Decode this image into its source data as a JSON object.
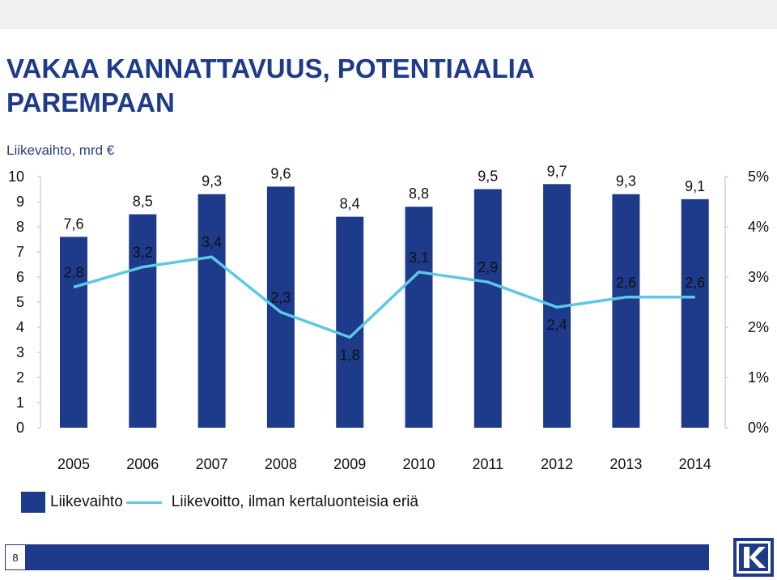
{
  "title_line1": "VAKAA KANNATTAVUUS, POTENTIAALIA",
  "title_line2": "PAREMPAAN",
  "subtitle": "Liikevaihto, mrd €",
  "page_number": "8",
  "colors": {
    "title": "#1e3a8a",
    "bar": "#1e3a8a",
    "line": "#5bc8e6"
  },
  "chart_data": {
    "type": "bar",
    "categories": [
      "2005",
      "2006",
      "2007",
      "2008",
      "2009",
      "2010",
      "2011",
      "2012",
      "2013",
      "2014"
    ],
    "series": [
      {
        "name": "Liikevaihto",
        "type": "bar",
        "axis": "left",
        "values": [
          7.6,
          8.5,
          9.3,
          9.6,
          8.4,
          8.8,
          9.5,
          9.7,
          9.3,
          9.1
        ],
        "labels": [
          "7,6",
          "8,5",
          "9,3",
          "9,6",
          "8,4",
          "8,8",
          "9,5",
          "9,7",
          "9,3",
          "9,1"
        ]
      },
      {
        "name": "Liikevoitto, ilman kertaluonteisia eriä",
        "type": "line",
        "axis": "right",
        "values": [
          2.8,
          3.2,
          3.4,
          2.3,
          1.8,
          3.1,
          2.9,
          2.4,
          2.6,
          2.6
        ],
        "labels": [
          "2,8",
          "3,2",
          "3,4",
          "2,3",
          "1,8",
          "3,1",
          "2,9",
          "2,4",
          "2,6",
          "2,6"
        ]
      }
    ],
    "y_left": {
      "min": 0,
      "max": 10,
      "ticks": [
        "0",
        "1",
        "2",
        "3",
        "4",
        "5",
        "6",
        "7",
        "8",
        "9",
        "10"
      ]
    },
    "y_right": {
      "min": 0,
      "max": 5,
      "ticks": [
        "0%",
        "1%",
        "2%",
        "3%",
        "4%",
        "5%"
      ]
    },
    "grid": false,
    "legend": "bottom-left"
  }
}
